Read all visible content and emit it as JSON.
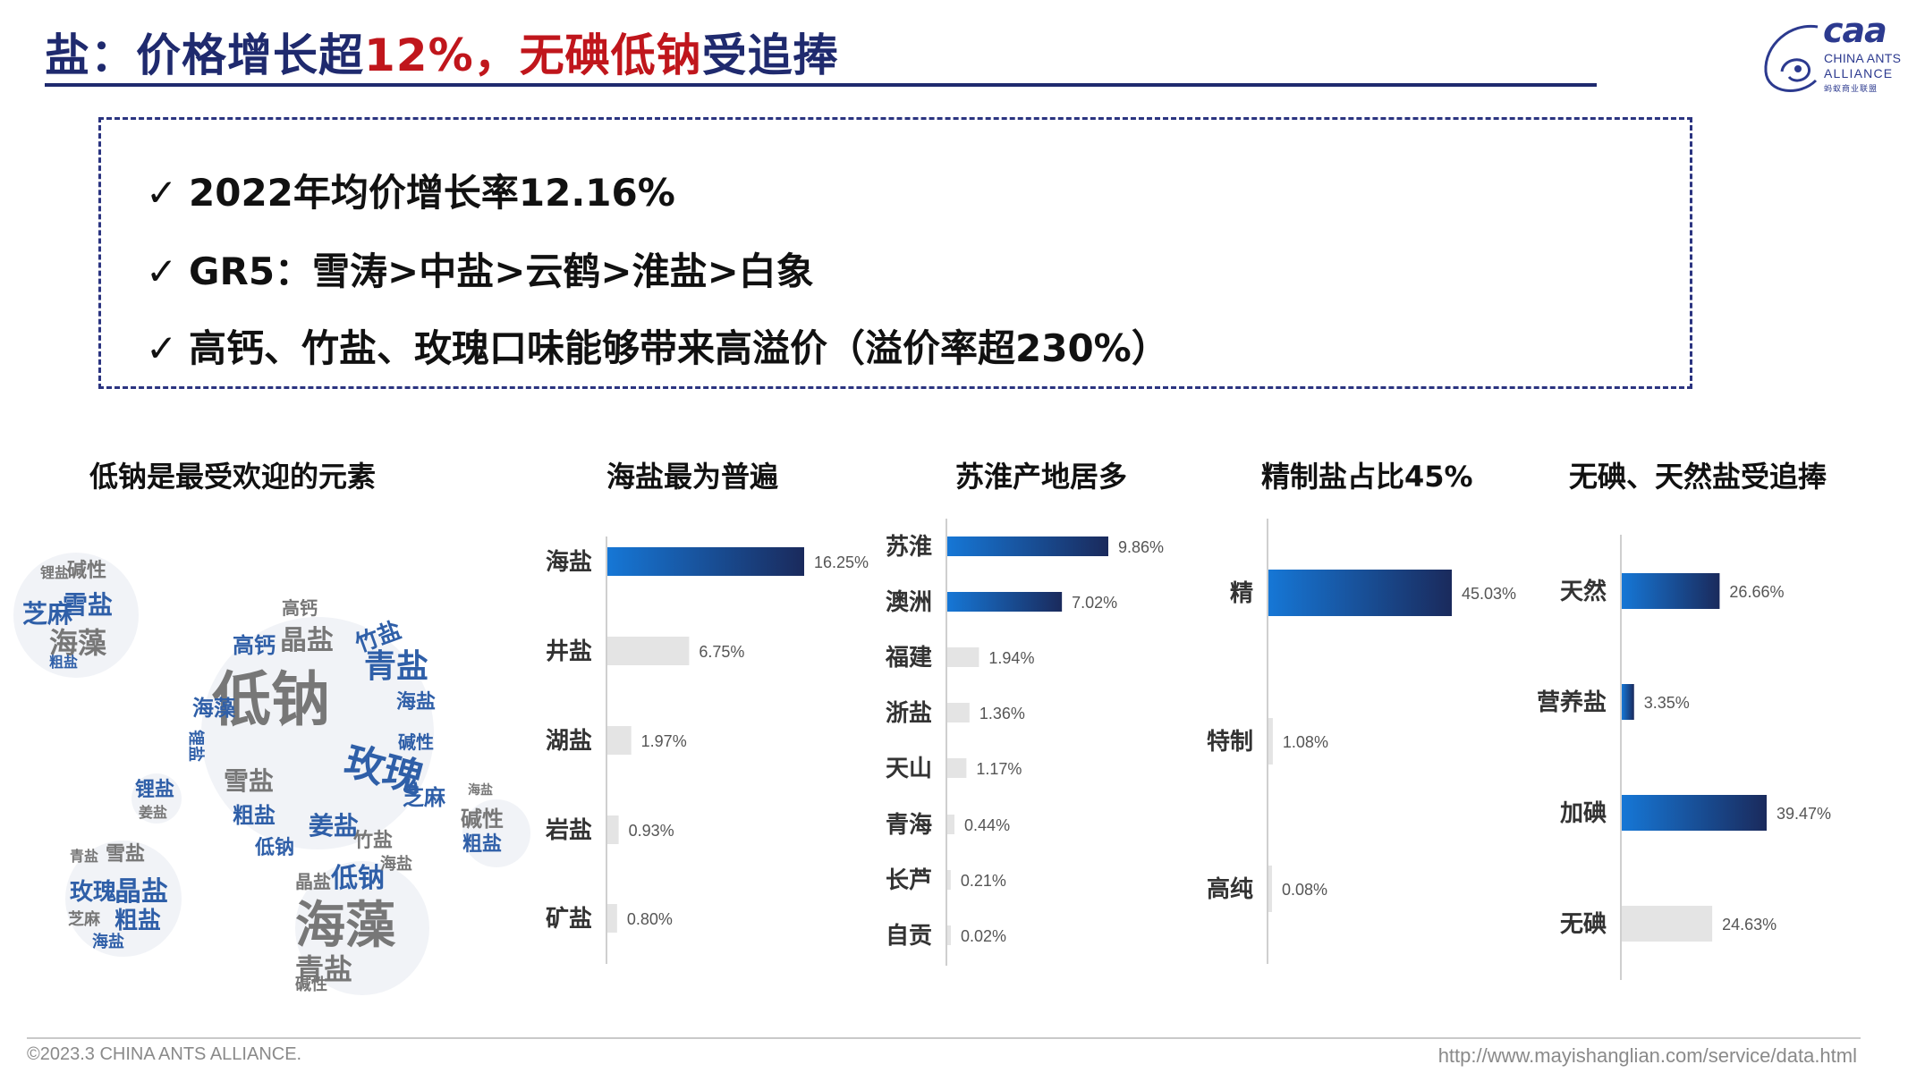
{
  "header": {
    "title_part1": "盐：价格增长超",
    "title_highlight1": "12%，",
    "title_highlight2": "无碘低钠",
    "title_part3": "受追捧",
    "title_color": "#1f2a6e",
    "highlight_color": "#c0161c"
  },
  "logo": {
    "word": "caa",
    "line1": "CHINA ANTS",
    "line2": "ALLIANCE",
    "line3": "蚂蚁商业联盟"
  },
  "summary": {
    "check_symbol": "✓",
    "bullets": [
      "2022年均价增长率12.16%",
      "GR5：雪涛>中盐>云鹤>淮盐>白象",
      "高钙、竹盐、玫瑰口味能够带来高溢价（溢价率超230%）"
    ]
  },
  "wordcloud": {
    "title": "低钠是最受欢迎的元素",
    "clouds": [
      {
        "words": [
          "低钠",
          "青盐",
          "晶盐",
          "竹盐",
          "高钙",
          "海藻",
          "玫瑰",
          "雪盐",
          "粗盐",
          "姜盐",
          "竹盐",
          "低钠",
          "高钙",
          "海盐",
          "碱性",
          "锂盐",
          "芝麻"
        ]
      },
      {
        "words": [
          "芝麻",
          "碱性",
          "雪盐",
          "海藻",
          "锂盐",
          "粗盐"
        ]
      },
      {
        "words": [
          "锂盐",
          "姜盐"
        ]
      },
      {
        "words": [
          "玫瑰",
          "晶盐",
          "雪盐",
          "芝麻",
          "青盐",
          "粗盐",
          "海盐"
        ]
      },
      {
        "words": [
          "海藻",
          "低钠",
          "晶盐",
          "青盐",
          "海盐",
          "碱性"
        ]
      },
      {
        "words": [
          "碱性",
          "粗盐",
          "海盐"
        ]
      }
    ]
  },
  "chart_data": [
    {
      "type": "bar",
      "orientation": "horizontal",
      "title": "海盐最为普遍",
      "categories": [
        "海盐",
        "井盐",
        "湖盐",
        "岩盐",
        "矿盐"
      ],
      "values": [
        16.25,
        6.75,
        1.97,
        0.93,
        0.8
      ],
      "value_labels": [
        "16.25%",
        "6.75%",
        "1.97%",
        "0.93%",
        "0.80%"
      ],
      "highlighted": [
        true,
        false,
        false,
        false,
        false
      ],
      "max": 16.25,
      "unit": "%"
    },
    {
      "type": "bar",
      "orientation": "horizontal",
      "title": "苏淮产地居多",
      "categories": [
        "苏淮",
        "澳洲",
        "福建",
        "浙盐",
        "天山",
        "青海",
        "长芦",
        "自贡"
      ],
      "values": [
        9.86,
        7.02,
        1.94,
        1.36,
        1.17,
        0.44,
        0.21,
        0.02
      ],
      "value_labels": [
        "9.86%",
        "7.02%",
        "1.94%",
        "1.36%",
        "1.17%",
        "0.44%",
        "0.21%",
        "0.02%"
      ],
      "highlighted": [
        true,
        true,
        false,
        false,
        false,
        false,
        false,
        false
      ],
      "max": 9.86,
      "unit": "%"
    },
    {
      "type": "bar",
      "orientation": "horizontal",
      "title": "精制盐占比45%",
      "categories": [
        "精",
        "特制",
        "高纯"
      ],
      "values": [
        45.03,
        1.08,
        0.08
      ],
      "value_labels": [
        "45.03%",
        "1.08%",
        "0.08%"
      ],
      "highlighted": [
        true,
        false,
        false
      ],
      "max": 45.03,
      "unit": "%"
    },
    {
      "type": "bar",
      "orientation": "horizontal",
      "title": "无碘、天然盐受追捧",
      "categories": [
        "天然",
        "营养盐",
        "加碘",
        "无碘"
      ],
      "values": [
        26.66,
        3.35,
        39.47,
        24.63
      ],
      "value_labels": [
        "26.66%",
        "3.35%",
        "39.47%",
        "24.63%"
      ],
      "highlighted": [
        true,
        true,
        true,
        false
      ],
      "max": 39.47,
      "unit": "%"
    }
  ],
  "colors": {
    "bar_start": "#1677d6",
    "bar_end": "#1a2a5c",
    "bar_grey": "#e4e4e4",
    "axis": "#cfcfcf",
    "wc_blue": "#2f5fa8",
    "wc_grey": "#777777"
  },
  "footer": {
    "copyright": "©2023.3 CHINA ANTS ALLIANCE.",
    "url": "http://www.mayishanglian.com/service/data.html"
  }
}
